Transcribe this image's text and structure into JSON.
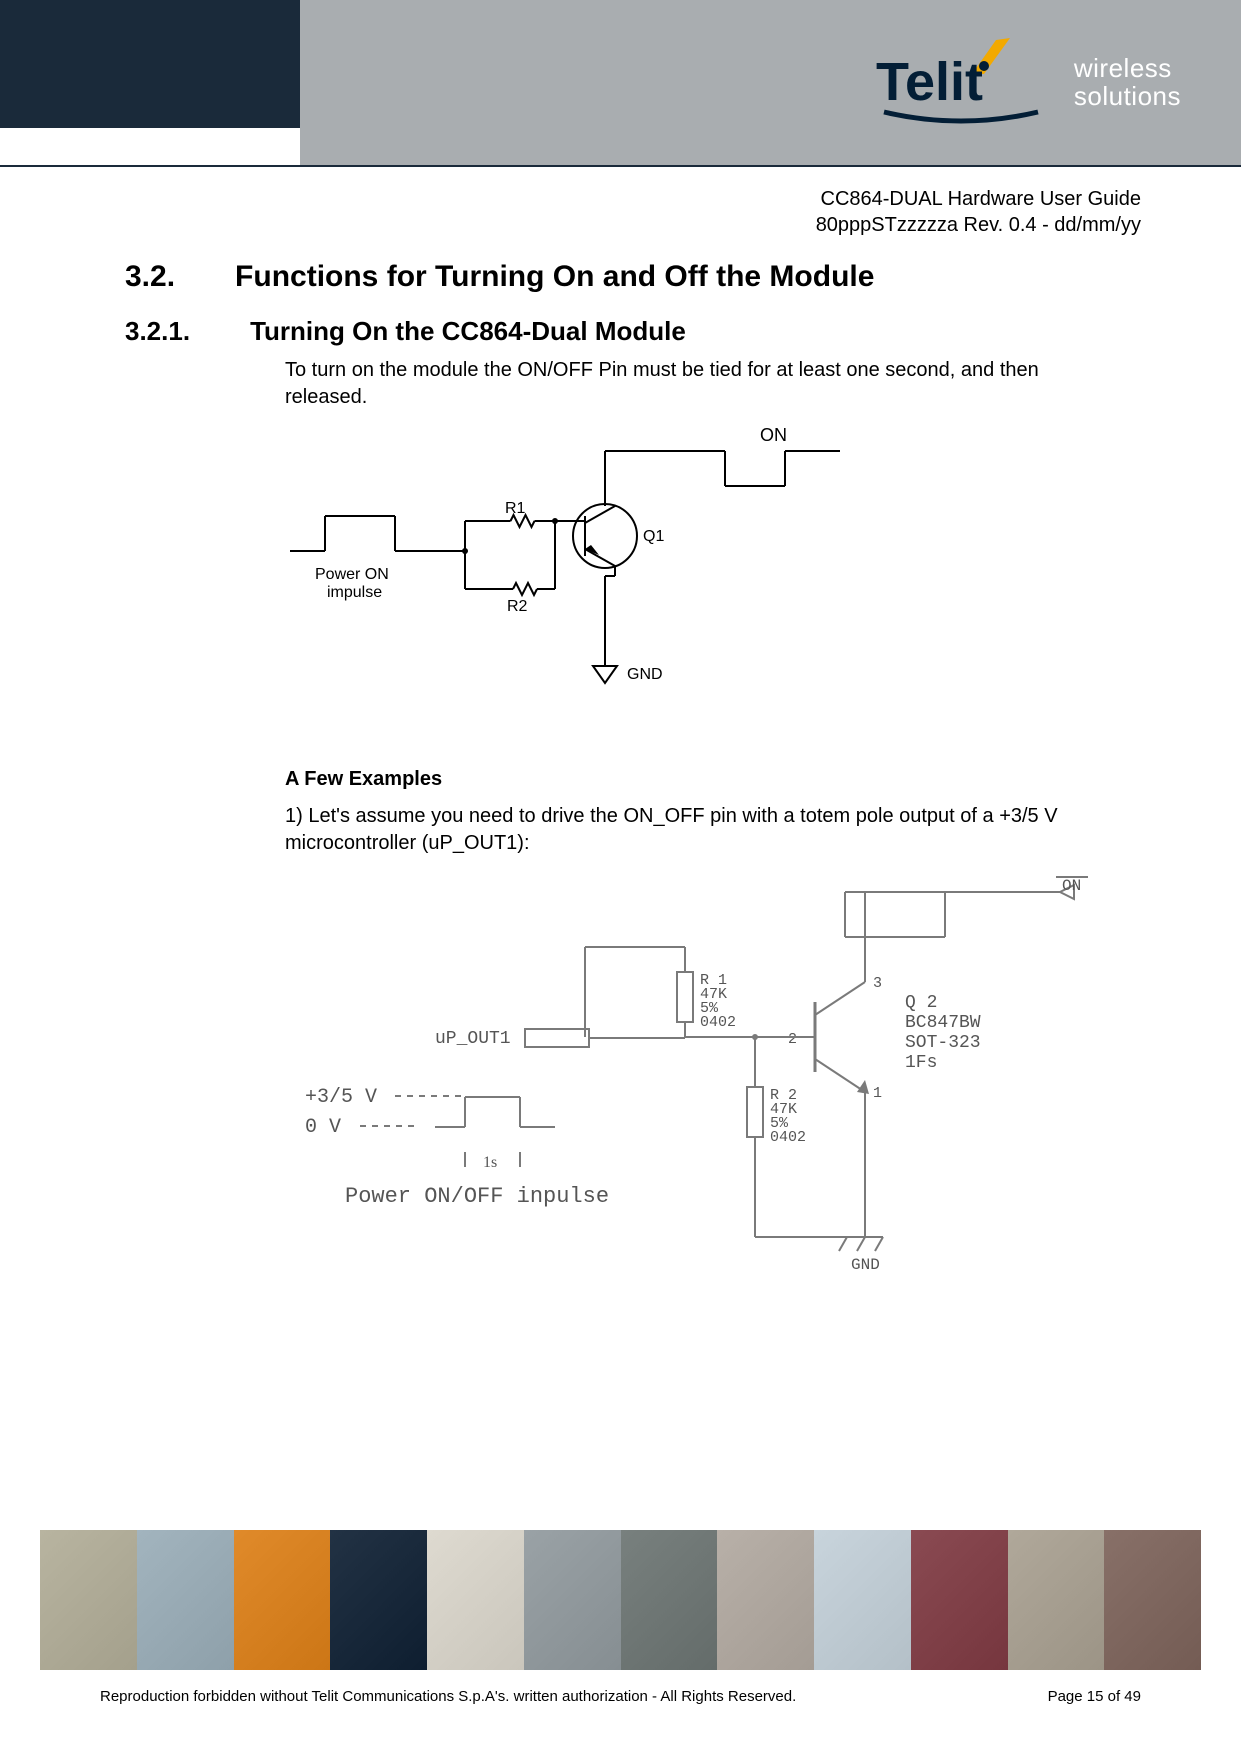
{
  "meta": {
    "doc_title": "CC864-DUAL Hardware User Guide",
    "doc_rev": "80pppSTzzzzza Rev. 0.4 - dd/mm/yy"
  },
  "logo": {
    "brand": "Telit",
    "tag1": "wireless",
    "tag2": "solutions",
    "dark_color": "#031e36",
    "accent_color": "#f2a900",
    "text_color": "#ffffff"
  },
  "sections": {
    "h1_num": "3.2.",
    "h1_text": "Functions for Turning On and Off the Module",
    "h2_num": "3.2.1.",
    "h2_text": "Turning On the CC864-Dual Module",
    "p1": "To turn on the module the ON/OFF Pin must be tied for at least one second, and then released.",
    "examples_title": "A Few Examples",
    "p2": "1) Let's assume you need to drive the ON_OFF pin with a totem pole output of a +3/5 V microcontroller (uP_OUT1):"
  },
  "diagram1": {
    "label_power": "Power ON",
    "label_impulse": "impulse",
    "r1": "R1",
    "r2": "R2",
    "q1": "Q1",
    "on": "ON",
    "gnd": "GND",
    "stroke": "#000000",
    "fill": "#ffffff",
    "font": "Arial"
  },
  "diagram2": {
    "up_out": "uP_OUT1",
    "v_high": "+3/5 V",
    "v_low": "0 V",
    "pulse_width": "1s",
    "caption": "Power ON/OFF inpulse",
    "r1_name": "R 1",
    "r1_val": "47K",
    "r1_tol": "5%",
    "r1_pkg": "0402",
    "r2_name": "R 2",
    "r2_val": "47K",
    "r2_tol": "5%",
    "r2_pkg": "0402",
    "q2_name": "Q 2",
    "q2_part": "BC847BW",
    "q2_pkg": "SOT-323",
    "q2_extra": "1Fs",
    "pin1": "1",
    "pin2": "2",
    "pin3": "3",
    "on_bar": "ON",
    "gnd": "GND",
    "stroke": "#7a7a7a",
    "font": "Courier New"
  },
  "footer": {
    "copyright": "Reproduction forbidden without Telit Communications S.p.A's. written authorization - All Rights Reserved.",
    "page": "Page 15 of 49",
    "tile_colors": [
      "#b8b4a0",
      "#a2b4be",
      "#e08a2a",
      "#223244",
      "#dedad0",
      "#9aa2a6",
      "#78807e",
      "#b8b0a8",
      "#c8d4dc",
      "#8a4a52",
      "#b0a89a",
      "#887068"
    ]
  }
}
